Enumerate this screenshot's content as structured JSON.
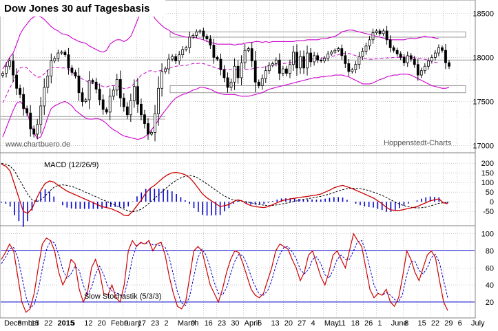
{
  "title": "Dow Jones 30 auf Tagesbasis",
  "watermark_left": "www.chartbuero.de",
  "watermark_right": "Hoppenstedt-Charts",
  "colors": {
    "price_band": "#cc00cc",
    "candle_body": "#000000",
    "macd_line": "#cc0000",
    "macd_signal": "#000000",
    "macd_histogram": "#0000cc",
    "stoch_k": "#cc0000",
    "stoch_d": "#0000cc",
    "stoch_levels": "#0000cc",
    "grid": "#aaaaaa",
    "support_box": "#999999"
  },
  "chart_data": [
    {
      "type": "candlestick",
      "title": "Dow Jones 30 auf Tagesbasis",
      "yticks": [
        17000,
        17500,
        18000,
        18500
      ],
      "ylim": [
        16950,
        18620
      ],
      "grid": true,
      "overlays": [
        "bollinger-bands",
        "moving-average"
      ],
      "close": [
        17820,
        17900,
        17960,
        17800,
        17650,
        17580,
        17420,
        17370,
        17190,
        17130,
        17240,
        17450,
        17660,
        17790,
        17960,
        17990,
        18050,
        18060,
        18030,
        17880,
        17830,
        17790,
        17600,
        17500,
        17520,
        17740,
        17720,
        17640,
        17520,
        17410,
        17380,
        17560,
        17630,
        17750,
        17540,
        17440,
        17350,
        17510,
        17670,
        17470,
        17350,
        17250,
        17130,
        17150,
        17360,
        17650,
        17840,
        17870,
        17980,
        18010,
        17960,
        18030,
        18090,
        18110,
        18230,
        18250,
        18290,
        18300,
        18240,
        18210,
        18140,
        18000,
        17980,
        17860,
        17770,
        17660,
        17720,
        17900,
        17770,
        17940,
        18080,
        18100,
        17960,
        17720,
        17680,
        17760,
        17850,
        17910,
        17930,
        17970,
        17820,
        17870,
        17820,
        17920,
        18060,
        17880,
        18010,
        17880,
        18050,
        17950,
        18020,
        17970,
        17960,
        17990,
        18040,
        18060,
        18080,
        18100,
        18020,
        17930,
        17840,
        17860,
        17920,
        18010,
        18070,
        18130,
        18200,
        18280,
        18300,
        18270,
        18300,
        18200,
        18110,
        18080,
        18040,
        18000,
        17940,
        18020,
        17980,
        17920,
        17800,
        17850,
        17900,
        17960,
        18000,
        18050,
        18110,
        18080,
        17940,
        17900
      ],
      "upper_band": [
        17870,
        17930,
        18000,
        18050,
        18150,
        18260,
        18330,
        18380,
        18430,
        18460,
        18470,
        18460,
        18430,
        18390,
        18350,
        18320,
        18300,
        18270,
        18260,
        18250,
        18220,
        18200,
        18180,
        18170,
        18160,
        18130,
        18110,
        18090,
        18070,
        18060,
        18080,
        18150,
        18180,
        18200,
        18200,
        18180,
        18200,
        18240,
        18330,
        18430,
        18520,
        18540,
        18560,
        18520,
        18440,
        18400,
        18360,
        18330,
        18310,
        18280,
        18260,
        18250,
        18240,
        18230,
        18230,
        18230,
        18220,
        18210,
        18200,
        18180,
        18170,
        18160,
        18150,
        18150,
        18150,
        18150,
        18150,
        18140,
        18150,
        18150,
        18160,
        18170,
        18170,
        18180,
        18180,
        18170,
        18180,
        18170,
        18180,
        18180,
        18180,
        18180,
        18180,
        18180,
        18180,
        18190,
        18190,
        18190,
        18200,
        18200,
        18200,
        18200,
        18210,
        18210,
        18220,
        18230,
        18240,
        18260,
        18290,
        18300,
        18310,
        18310,
        18300,
        18290,
        18280,
        18270,
        18260,
        18250,
        18240,
        18230,
        18220,
        18210,
        18200,
        18200,
        18200,
        18200,
        18200,
        18210,
        18220,
        18210,
        18220,
        18230,
        18240,
        18230,
        18230,
        18220,
        18210
      ],
      "lower_band": [
        17100,
        17200,
        17300,
        17400,
        17480,
        17500,
        17460,
        17380,
        17250,
        17150,
        17080,
        17100,
        17200,
        17320,
        17420,
        17450,
        17470,
        17490,
        17500,
        17480,
        17450,
        17400,
        17370,
        17340,
        17310,
        17300,
        17300,
        17310,
        17300,
        17280,
        17250,
        17210,
        17180,
        17160,
        17130,
        17110,
        17100,
        17090,
        17080,
        17070,
        17080,
        17100,
        17130,
        17180,
        17230,
        17290,
        17350,
        17400,
        17450,
        17500,
        17540,
        17560,
        17580,
        17590,
        17610,
        17630,
        17640,
        17660,
        17660,
        17650,
        17640,
        17620,
        17600,
        17590,
        17580,
        17580,
        17580,
        17580,
        17570,
        17560,
        17560,
        17560,
        17570,
        17580,
        17590,
        17600,
        17620,
        17640,
        17650,
        17660,
        17670,
        17680,
        17690,
        17700,
        17710,
        17720,
        17730,
        17740,
        17750,
        17760,
        17770,
        17770,
        17780,
        17780,
        17790,
        17790,
        17800,
        17800,
        17800,
        17790,
        17780,
        17760,
        17740,
        17720,
        17700,
        17700,
        17700,
        17710,
        17730,
        17750,
        17760,
        17780,
        17790,
        17800,
        17800,
        17810,
        17810,
        17810,
        17800,
        17780,
        17760,
        17740,
        17720,
        17700,
        17680,
        17670,
        17660,
        17650,
        17650,
        17660
      ],
      "support_zone": [
        17600,
        17680
      ],
      "resistance_zone": [
        18230,
        18290
      ],
      "level_line": 17970
    },
    {
      "type": "line",
      "title": "MACD (12/26/9)",
      "yticks": [
        200,
        150,
        100,
        50,
        0,
        -50
      ],
      "ylim": [
        -110,
        240
      ],
      "series": [
        {
          "values": [
            195,
            185,
            160,
            90,
            20,
            -50,
            -60,
            -35,
            15,
            60,
            95,
            108,
            102,
            85,
            70,
            55,
            45,
            35,
            25,
            15,
            5,
            -5,
            -15,
            -25,
            -30,
            -35,
            -45,
            -55,
            -70,
            -72,
            -50,
            -20,
            10,
            45,
            70,
            85,
            105,
            125,
            140,
            150,
            152,
            148,
            140,
            125,
            100,
            70,
            40,
            20,
            5,
            -10,
            -25,
            -20,
            -15,
            0,
            10,
            5,
            -10,
            -20,
            -25,
            -28,
            -30,
            -25,
            -15,
            -5,
            5,
            10,
            15,
            18,
            22,
            25,
            28,
            32,
            35,
            40,
            50,
            60,
            72,
            80,
            85,
            78,
            70,
            60,
            50,
            40,
            30,
            20,
            5,
            -10,
            -30,
            -42,
            -45,
            -45,
            -40,
            -35,
            -30,
            -25,
            -15,
            -5,
            5,
            10,
            15,
            -5,
            -10
          ]
        },
        {
          "values": [
            200,
            195,
            185,
            160,
            120,
            80,
            40,
            10,
            0,
            10,
            30,
            55,
            75,
            85,
            88,
            85,
            80,
            72,
            62,
            52,
            42,
            32,
            22,
            12,
            2,
            -8,
            -18,
            -28,
            -38,
            -48,
            -52,
            -48,
            -38,
            -22,
            -2,
            18,
            38,
            58,
            78,
            96,
            112,
            124,
            132,
            136,
            132,
            122,
            108,
            92,
            76,
            60,
            44,
            30,
            18,
            10,
            5,
            3,
            0,
            -5,
            -10,
            -14,
            -18,
            -20,
            -19,
            -16,
            -12,
            -8,
            -3,
            2,
            7,
            12,
            16,
            20,
            24,
            28,
            34,
            40,
            48,
            56,
            63,
            68,
            70,
            70,
            68,
            64,
            58,
            50,
            42,
            33,
            22,
            10,
            -2,
            -12,
            -20,
            -26,
            -30,
            -32,
            -31,
            -28,
            -22,
            -15,
            -8,
            -5,
            -3
          ]
        },
        {
          "values": [
            -5,
            -10,
            -25,
            -70,
            -100,
            -130,
            -100,
            -45,
            15,
            50,
            65,
            53,
            27,
            0,
            -18,
            -30,
            -35,
            -37,
            -37,
            -37,
            -37,
            -37,
            -37,
            -37,
            -32,
            -27,
            -27,
            -27,
            -32,
            -24,
            2,
            28,
            48,
            67,
            72,
            67,
            67,
            67,
            62,
            54,
            40,
            24,
            8,
            -11,
            -32,
            -52,
            -68,
            -72,
            -71,
            -70,
            -69,
            -50,
            -33,
            -10,
            5,
            2,
            -10,
            -15,
            -15,
            -14,
            -12,
            -5,
            4,
            11,
            17,
            18,
            18,
            16,
            15,
            13,
            12,
            12,
            11,
            12,
            16,
            20,
            24,
            24,
            22,
            10,
            0,
            -10,
            -18,
            -24,
            -28,
            -30,
            -37,
            -43,
            -52,
            -52,
            -43,
            -33,
            -20,
            -9,
            0,
            7,
            16,
            23,
            27,
            25,
            23,
            0,
            -7
          ]
        }
      ]
    },
    {
      "type": "line",
      "title": "Slow Stochastik (5/3/3)",
      "yticks": [
        100,
        80,
        60,
        40,
        20
      ],
      "ylim": [
        3,
        107
      ],
      "levels": [
        80,
        20
      ],
      "series": [
        {
          "values": [
            70,
            78,
            88,
            80,
            50,
            20,
            8,
            12,
            30,
            60,
            88,
            95,
            92,
            80,
            55,
            40,
            50,
            70,
            65,
            35,
            20,
            30,
            60,
            70,
            55,
            30,
            28,
            40,
            25,
            20,
            40,
            80,
            92,
            85,
            90,
            88,
            92,
            80,
            88,
            90,
            75,
            50,
            30,
            15,
            12,
            20,
            50,
            80,
            85,
            80,
            60,
            40,
            30,
            20,
            35,
            55,
            70,
            80,
            78,
            65,
            50,
            35,
            28,
            25,
            30,
            45,
            60,
            80,
            88,
            85,
            82,
            70,
            60,
            45,
            55,
            75,
            80,
            65,
            50,
            40,
            55,
            75,
            80,
            70,
            60,
            80,
            100,
            92,
            85,
            60,
            35,
            25,
            30,
            28,
            35,
            20,
            15,
            25,
            50,
            80,
            70,
            55,
            45,
            60,
            75,
            80,
            72,
            45,
            20,
            10
          ]
        },
        {
          "values": [
            65,
            72,
            82,
            84,
            72,
            50,
            26,
            13,
            17,
            34,
            59,
            81,
            92,
            89,
            76,
            58,
            48,
            53,
            62,
            57,
            40,
            28,
            37,
            53,
            62,
            52,
            38,
            33,
            31,
            28,
            28,
            47,
            71,
            86,
            89,
            88,
            90,
            87,
            87,
            86,
            84,
            72,
            52,
            32,
            19,
            16,
            27,
            50,
            72,
            82,
            75,
            60,
            43,
            30,
            28,
            37,
            53,
            68,
            76,
            74,
            64,
            50,
            38,
            29,
            28,
            33,
            45,
            62,
            76,
            84,
            85,
            79,
            71,
            58,
            53,
            58,
            70,
            73,
            65,
            52,
            48,
            57,
            70,
            75,
            70,
            70,
            80,
            91,
            92,
            79,
            60,
            40,
            30,
            28,
            31,
            28,
            23,
            20,
            30,
            52,
            67,
            68,
            57,
            53,
            60,
            72,
            76,
            66,
            45,
            25
          ]
        }
      ]
    }
  ],
  "x_axis": {
    "labels": [
      {
        "text": "December",
        "bold": false
      },
      {
        "text": "8",
        "bold": false
      },
      {
        "text": "15",
        "bold": false
      },
      {
        "text": "22",
        "bold": false
      },
      {
        "text": "2015",
        "bold": true
      },
      {
        "text": "5",
        "bold": false
      },
      {
        "text": "12",
        "bold": false
      },
      {
        "text": "20",
        "bold": false
      },
      {
        "text": "February",
        "bold": false
      },
      {
        "text": "9",
        "bold": false
      },
      {
        "text": "17",
        "bold": false
      },
      {
        "text": "23",
        "bold": false
      },
      {
        "text": "2",
        "bold": false
      },
      {
        "text": "March",
        "bold": false
      },
      {
        "text": "9",
        "bold": false
      },
      {
        "text": "16",
        "bold": false
      },
      {
        "text": "23",
        "bold": false
      },
      {
        "text": "30",
        "bold": false
      },
      {
        "text": "April",
        "bold": false
      },
      {
        "text": "6",
        "bold": false
      },
      {
        "text": "13",
        "bold": false
      },
      {
        "text": "20",
        "bold": false
      },
      {
        "text": "27",
        "bold": false
      },
      {
        "text": "4",
        "bold": false
      },
      {
        "text": "May",
        "bold": false
      },
      {
        "text": "11",
        "bold": false
      },
      {
        "text": "18",
        "bold": false
      },
      {
        "text": "26",
        "bold": false
      },
      {
        "text": "1",
        "bold": false
      },
      {
        "text": "June",
        "bold": false
      },
      {
        "text": "8",
        "bold": false
      },
      {
        "text": "15",
        "bold": false
      },
      {
        "text": "22",
        "bold": false
      },
      {
        "text": "29",
        "bold": false
      },
      {
        "text": "6",
        "bold": false
      },
      {
        "text": "July",
        "bold": false
      }
    ]
  }
}
